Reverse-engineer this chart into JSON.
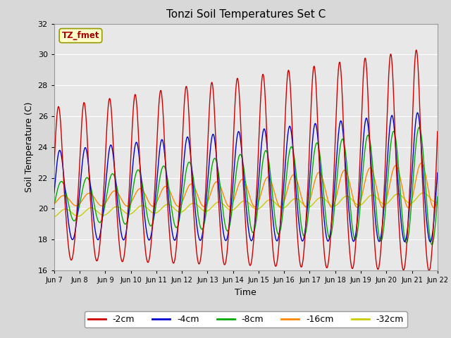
{
  "title": "Tonzi Soil Temperatures Set C",
  "xlabel": "Time",
  "ylabel": "Soil Temperature (C)",
  "ylim": [
    16,
    32
  ],
  "yticks": [
    16,
    18,
    20,
    22,
    24,
    26,
    28,
    30,
    32
  ],
  "x_labels": [
    "Jun 7",
    "Jun 8",
    "Jun 9",
    "Jun 10",
    "Jun 11",
    "Jun 12",
    "Jun 13",
    "Jun 14",
    "Jun 15",
    "Jun 16",
    "Jun 17",
    "Jun 18",
    "Jun 19",
    "Jun 20",
    "Jun 21",
    "Jun 22"
  ],
  "series_colors": [
    "#cc0000",
    "#0000cc",
    "#00aa00",
    "#ff8800",
    "#cccc00"
  ],
  "series_labels": [
    "-2cm",
    "-4cm",
    "-8cm",
    "-16cm",
    "-32cm"
  ],
  "annotation_text": "TZ_fmet",
  "annotation_color": "#aa0000",
  "annotation_bg": "#ffffcc",
  "background_color": "#e8e8e8",
  "grid_color": "#ffffff",
  "n_days": 15,
  "samples_per_day": 96
}
